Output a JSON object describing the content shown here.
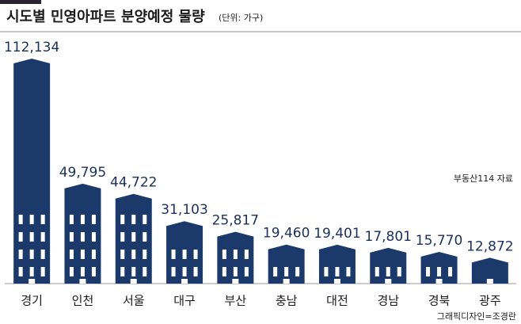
{
  "chart_data": {
    "type": "bar",
    "title": "시도별 민영아파트 분양예정 물량",
    "subtitle": "(단위: 가구)",
    "source": "부동산114 자료",
    "credit": "그래픽디자인=조경란",
    "categories": [
      "경기",
      "인천",
      "서울",
      "대구",
      "부산",
      "충남",
      "대전",
      "경남",
      "경북",
      "광주"
    ],
    "values": [
      112134,
      49795,
      44722,
      31103,
      25817,
      19460,
      19401,
      17801,
      15770,
      12872
    ],
    "value_labels": [
      "112,134",
      "49,795",
      "44,722",
      "31,103",
      "25,817",
      "19,460",
      "19,401",
      "17,801",
      "15,770",
      "12,872"
    ],
    "color": "#1b3a6b"
  }
}
